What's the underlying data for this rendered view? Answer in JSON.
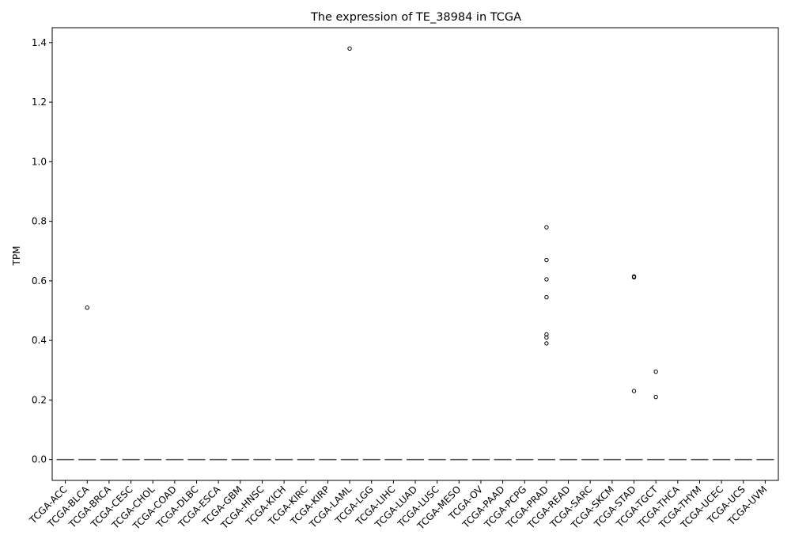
{
  "chart_data": {
    "type": "box",
    "title": "The expression of TE_38984 in TCGA",
    "xlabel": "",
    "ylabel": "TPM",
    "ylim": [
      -0.07,
      1.45
    ],
    "yticks": [
      "0.0",
      "0.2",
      "0.4",
      "0.6",
      "0.8",
      "1.0",
      "1.2",
      "1.4"
    ],
    "grid": false,
    "categories": [
      "TCGA-ACC",
      "TCGA-BLCA",
      "TCGA-BRCA",
      "TCGA-CESC",
      "TCGA-CHOL",
      "TCGA-COAD",
      "TCGA-DLBC",
      "TCGA-ESCA",
      "TCGA-GBM",
      "TCGA-HNSC",
      "TCGA-KICH",
      "TCGA-KIRC",
      "TCGA-KIRP",
      "TCGA-LAML",
      "TCGA-LGG",
      "TCGA-LIHC",
      "TCGA-LUAD",
      "TCGA-LUSC",
      "TCGA-MESO",
      "TCGA-OV",
      "TCGA-PAAD",
      "TCGA-PCPG",
      "TCGA-PRAD",
      "TCGA-READ",
      "TCGA-SARC",
      "TCGA-SKCM",
      "TCGA-STAD",
      "TCGA-TGCT",
      "TCGA-THCA",
      "TCGA-THYM",
      "TCGA-UCEC",
      "TCGA-UCS",
      "TCGA-UVM"
    ],
    "median": 0,
    "outliers": [
      {
        "category": "TCGA-BLCA",
        "values": [
          0.51
        ]
      },
      {
        "category": "TCGA-LAML",
        "values": [
          1.38
        ]
      },
      {
        "category": "TCGA-PRAD",
        "values": [
          0.78,
          0.67,
          0.605,
          0.545,
          0.42,
          0.41,
          0.39
        ]
      },
      {
        "category": "TCGA-STAD",
        "values": [
          0.615,
          0.612,
          0.23
        ]
      },
      {
        "category": "TCGA-TGCT",
        "values": [
          0.295,
          0.21
        ]
      }
    ]
  }
}
